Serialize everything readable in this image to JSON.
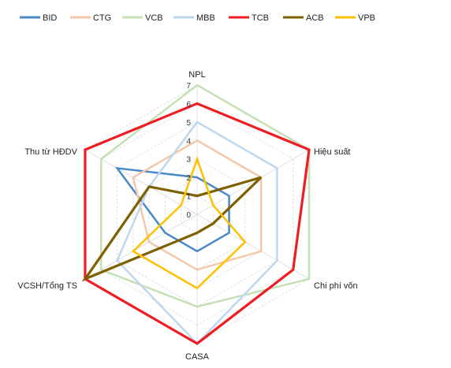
{
  "chart_data": {
    "type": "radar",
    "axes": [
      "NPL",
      "Hiệu suất",
      "Chi phí vốn",
      "CASA",
      "VCSH/Tổng TS",
      "Thu từ HĐDV"
    ],
    "rlim": [
      0,
      7
    ],
    "ticks": [
      "0",
      "1",
      "2",
      "3",
      "4",
      "5",
      "6",
      "7"
    ],
    "grid": true,
    "legend_position": "top",
    "series": [
      {
        "name": "BID",
        "color": "#4a89c8",
        "width": 2.5,
        "values": [
          2,
          2,
          2,
          2,
          2,
          5
        ]
      },
      {
        "name": "CTG",
        "color": "#f5c7a9",
        "width": 2.5,
        "values": [
          4,
          4,
          4,
          3,
          3,
          4
        ]
      },
      {
        "name": "VCB",
        "color": "#c5e0b4",
        "width": 2.5,
        "values": [
          7,
          7,
          7,
          5,
          6,
          6
        ]
      },
      {
        "name": "MBB",
        "color": "#bdd7ee",
        "width": 2.5,
        "values": [
          5,
          5,
          5,
          7,
          5,
          3
        ]
      },
      {
        "name": "TCB",
        "color": "#ee1d24",
        "width": 3.2,
        "values": [
          6,
          7,
          6,
          7,
          7,
          7
        ]
      },
      {
        "name": "ACB",
        "color": "#7f6000",
        "width": 3.2,
        "values": [
          1,
          4,
          1,
          1,
          7,
          3
        ]
      },
      {
        "name": "VPB",
        "color": "#ffc000",
        "width": 2.5,
        "values": [
          3,
          1,
          3,
          4,
          4,
          1
        ]
      }
    ]
  }
}
